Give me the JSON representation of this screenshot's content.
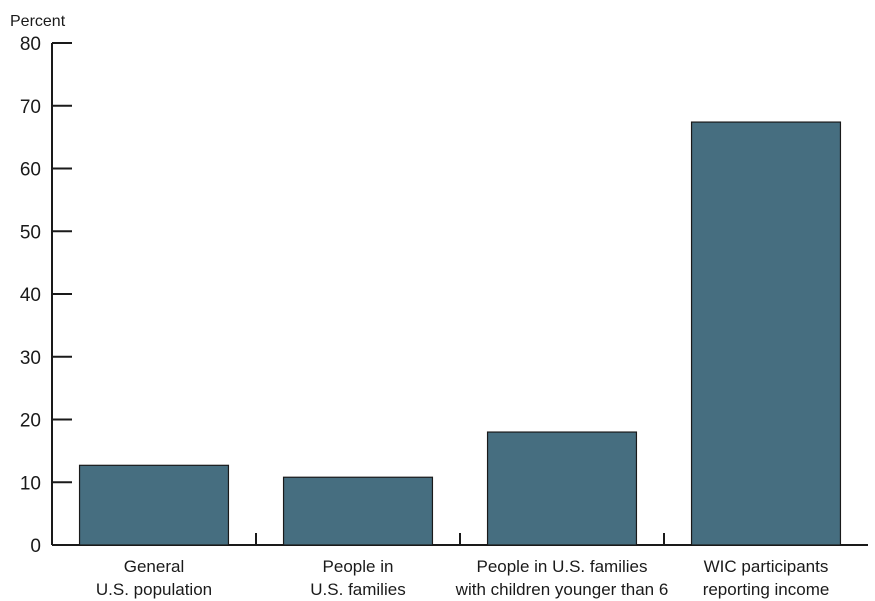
{
  "chart_data": {
    "type": "bar",
    "ylabel": "Percent",
    "ylim": [
      0,
      80
    ],
    "yticks": [
      0,
      10,
      20,
      30,
      40,
      50,
      60,
      70,
      80
    ],
    "categories": [
      [
        "General",
        "U.S. population"
      ],
      [
        "People in",
        "U.S. families"
      ],
      [
        "People in U.S. families",
        "with children younger than 6"
      ],
      [
        "WIC participants",
        "reporting income"
      ]
    ],
    "values": [
      12.7,
      10.8,
      18.0,
      67.4
    ],
    "bar_color": "#466e80",
    "grid": false
  }
}
